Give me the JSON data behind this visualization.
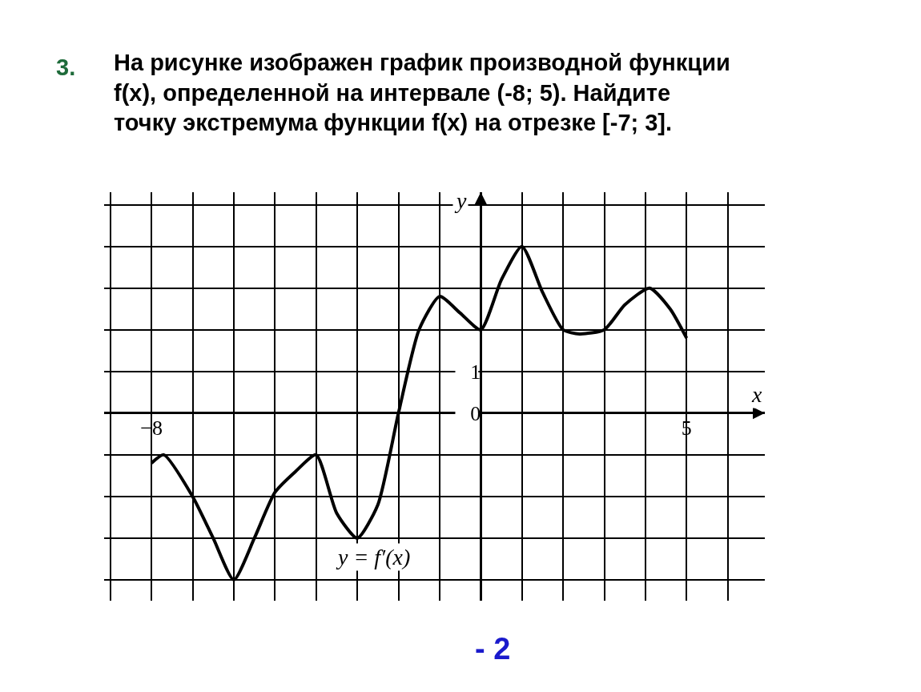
{
  "chart_data": {
    "type": "line",
    "title": "На рисунке изображен график производной функции f(x), определенной на интервале (-8; 5). Найдите точку экстремума функции f(x) на отрезке [-7; 3].",
    "xlabel": "x",
    "ylabel": "y",
    "annotations": [
      "3.",
      "y = f′(x)",
      "- 2"
    ],
    "x": [
      -8,
      -7.7,
      -7,
      -6.5,
      -6,
      -5.5,
      -5,
      -4.5,
      -4,
      -3.5,
      -3,
      -2.5,
      -2,
      -1.5,
      -1,
      -0.5,
      0,
      0.5,
      1,
      1.5,
      2,
      2.4,
      3,
      3.5,
      4.1,
      4.6,
      5
    ],
    "series": [
      {
        "color": "#000000",
        "values": [
          -1.2,
          -1,
          -2,
          -3,
          -4,
          -3,
          -1.9,
          -1.4,
          -1,
          -2.4,
          -3,
          -2.2,
          0,
          2,
          2.8,
          2.4,
          2,
          3.2,
          4,
          2.9,
          2,
          1.9,
          2,
          2.6,
          3,
          2.5,
          1.8
        ]
      }
    ],
    "xlim": [
      -9.15,
      6.9
    ],
    "ylim": [
      -4.5,
      5.3
    ],
    "xticks": [
      {
        "value": -9,
        "label": null
      },
      -8,
      {
        "value": -7,
        "label": null
      },
      {
        "value": -6,
        "label": null
      },
      {
        "value": -5,
        "label": null
      },
      {
        "value": -4,
        "label": null
      },
      {
        "value": -3,
        "label": null
      },
      {
        "value": -2,
        "label": null
      },
      {
        "value": -1,
        "label": null
      },
      {
        "value": 0,
        "label": null
      },
      {
        "value": 1,
        "label": null
      },
      {
        "value": 2,
        "label": null
      },
      {
        "value": 3,
        "label": null
      },
      {
        "value": 4,
        "label": null
      },
      5,
      {
        "value": 6,
        "label": null
      }
    ],
    "yticks": [
      {
        "value": -4,
        "label": null
      },
      {
        "value": -3,
        "label": null
      },
      {
        "value": -2,
        "label": null
      },
      {
        "value": -1,
        "label": null
      },
      0,
      1,
      {
        "value": 2,
        "label": null
      },
      {
        "value": 3,
        "label": null
      },
      {
        "value": 4,
        "label": null
      },
      {
        "value": 5,
        "label": null
      }
    ],
    "grid": true,
    "legend": false,
    "line_style": "solid"
  }
}
